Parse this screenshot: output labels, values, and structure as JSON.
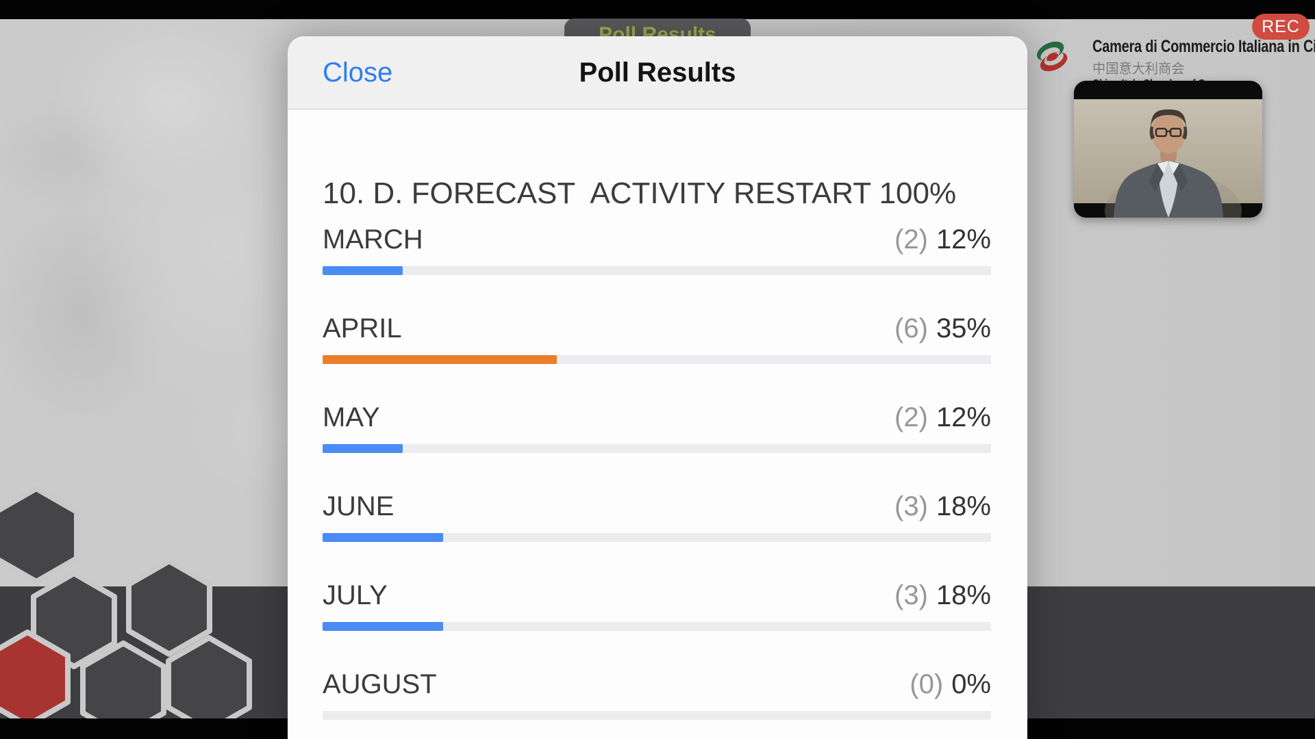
{
  "screen": {
    "rec_label": "REC",
    "floating_poll_button": "Poll Results"
  },
  "logo": {
    "line1": "Camera di Commercio Italiana in Cina",
    "line2": "中国意大利商会",
    "line3": "China-Italy Chamber of Commerce"
  },
  "modal": {
    "close_label": "Close",
    "title": "Poll Results",
    "question": "10. D. FORECAST  ACTIVITY RESTART 100%"
  },
  "poll": {
    "options": [
      {
        "label": "MARCH",
        "votes_display": "(2)",
        "percent_display": "12%",
        "votes": 2,
        "percent": 12,
        "color": "#4a8bf5"
      },
      {
        "label": "APRIL",
        "votes_display": "(6)",
        "percent_display": "35%",
        "votes": 6,
        "percent": 35,
        "color": "#ea7e2d"
      },
      {
        "label": "MAY",
        "votes_display": "(2)",
        "percent_display": "12%",
        "votes": 2,
        "percent": 12,
        "color": "#4a8bf5"
      },
      {
        "label": "JUNE",
        "votes_display": "(3)",
        "percent_display": "18%",
        "votes": 3,
        "percent": 18,
        "color": "#4a8bf5"
      },
      {
        "label": "JULY",
        "votes_display": "(3)",
        "percent_display": "18%",
        "votes": 3,
        "percent": 18,
        "color": "#4a8bf5"
      },
      {
        "label": "AUGUST",
        "votes_display": "(0)",
        "percent_display": "0%",
        "votes": 0,
        "percent": 0,
        "color": "#4a8bf5"
      }
    ]
  },
  "chart_data": {
    "type": "bar",
    "title": "10. D. FORECAST  ACTIVITY RESTART 100%",
    "categories": [
      "MARCH",
      "APRIL",
      "MAY",
      "JUNE",
      "JULY",
      "AUGUST"
    ],
    "series": [
      {
        "name": "votes",
        "values": [
          2,
          6,
          2,
          3,
          3,
          0
        ]
      },
      {
        "name": "percent",
        "values": [
          12,
          35,
          12,
          18,
          18,
          0
        ]
      }
    ],
    "xlabel": "",
    "ylabel": "",
    "xlim": [
      0,
      100
    ],
    "grid": false,
    "legend_position": "none",
    "orientation": "horizontal",
    "highlight_color_for_top_answer": "#ea7e2d",
    "default_bar_color": "#4a8bf5"
  },
  "colors": {
    "bar_blue": "#4a8bf5",
    "bar_orange": "#ea7e2d",
    "close_blue": "#2e7cf6",
    "rec_red": "#d14b40",
    "pill_green_text": "#9cb14f",
    "hex_dark": "#454548",
    "hex_red": "#a83431",
    "slide_gray": "#cacaca"
  }
}
